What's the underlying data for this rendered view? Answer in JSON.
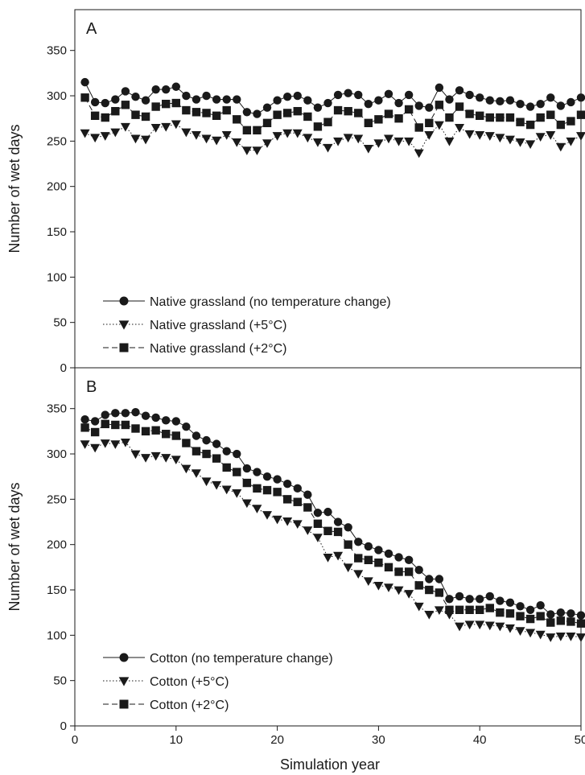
{
  "figure": {
    "xlabel": "Simulation year",
    "x_ticks": [
      0,
      10,
      20,
      30,
      40,
      50
    ],
    "line_color": "#1a1a1a"
  },
  "chart_data": [
    {
      "type": "line",
      "panel_label": "A",
      "ylabel": "Number of wet days",
      "xlim": [
        0,
        50
      ],
      "ylim": [
        0,
        395
      ],
      "y_ticks": [
        0,
        50,
        100,
        150,
        200,
        250,
        300,
        350
      ],
      "grid": false,
      "legend_position": "bottom-left",
      "x": [
        1,
        2,
        3,
        4,
        5,
        6,
        7,
        8,
        9,
        10,
        11,
        12,
        13,
        14,
        15,
        16,
        17,
        18,
        19,
        20,
        21,
        22,
        23,
        24,
        25,
        26,
        27,
        28,
        29,
        30,
        31,
        32,
        33,
        34,
        35,
        36,
        37,
        38,
        39,
        40,
        41,
        42,
        43,
        44,
        45,
        46,
        47,
        48,
        49,
        50
      ],
      "series": [
        {
          "name": "Native grassland (no temperature change)",
          "marker": "circle",
          "line_style": "solid",
          "values": [
            315,
            293,
            292,
            296,
            305,
            299,
            295,
            307,
            307,
            310,
            300,
            296,
            300,
            296,
            296,
            296,
            282,
            280,
            287,
            295,
            299,
            300,
            295,
            287,
            292,
            301,
            303,
            301,
            291,
            295,
            302,
            292,
            301,
            289,
            287,
            309,
            296,
            306,
            301,
            298,
            295,
            294,
            295,
            291,
            288,
            291,
            298,
            289,
            293,
            298
          ]
        },
        {
          "name": "Native grassland (+5°C)",
          "marker": "triangle-down",
          "line_style": "dotted",
          "values": [
            259,
            254,
            256,
            260,
            266,
            253,
            252,
            265,
            266,
            269,
            260,
            257,
            253,
            251,
            257,
            249,
            240,
            240,
            248,
            256,
            259,
            259,
            254,
            249,
            243,
            250,
            254,
            253,
            242,
            248,
            253,
            250,
            250,
            237,
            257,
            268,
            250,
            265,
            258,
            257,
            256,
            254,
            252,
            249,
            247,
            255,
            257,
            244,
            250,
            256
          ]
        },
        {
          "name": "Native grassland (+2°C)",
          "marker": "square",
          "line_style": "dashed",
          "values": [
            298,
            278,
            276,
            283,
            290,
            279,
            277,
            288,
            291,
            292,
            284,
            282,
            281,
            278,
            284,
            274,
            262,
            262,
            270,
            279,
            281,
            283,
            277,
            266,
            271,
            284,
            283,
            281,
            270,
            274,
            280,
            275,
            285,
            265,
            270,
            290,
            276,
            288,
            280,
            278,
            276,
            276,
            276,
            271,
            268,
            276,
            279,
            268,
            272,
            279
          ]
        }
      ]
    },
    {
      "type": "line",
      "panel_label": "B",
      "ylabel": "Number of wet days",
      "xlim": [
        0,
        50
      ],
      "ylim": [
        0,
        395
      ],
      "y_ticks": [
        0,
        50,
        100,
        150,
        200,
        250,
        300,
        350
      ],
      "grid": false,
      "legend_position": "bottom-left",
      "x": [
        1,
        2,
        3,
        4,
        5,
        6,
        7,
        8,
        9,
        10,
        11,
        12,
        13,
        14,
        15,
        16,
        17,
        18,
        19,
        20,
        21,
        22,
        23,
        24,
        25,
        26,
        27,
        28,
        29,
        30,
        31,
        32,
        33,
        34,
        35,
        36,
        37,
        38,
        39,
        40,
        41,
        42,
        43,
        44,
        45,
        46,
        47,
        48,
        49,
        50
      ],
      "series": [
        {
          "name": "Cotton (no temperature change)",
          "marker": "circle",
          "line_style": "solid",
          "values": [
            338,
            336,
            343,
            345,
            345,
            346,
            342,
            340,
            337,
            336,
            330,
            320,
            315,
            311,
            303,
            300,
            284,
            280,
            275,
            272,
            267,
            262,
            255,
            235,
            236,
            225,
            219,
            203,
            198,
            194,
            190,
            186,
            183,
            172,
            162,
            162,
            140,
            143,
            140,
            140,
            143,
            138,
            136,
            132,
            128,
            133,
            123,
            125,
            124,
            122
          ]
        },
        {
          "name": "Cotton (+5°C)",
          "marker": "triangle-down",
          "line_style": "dotted",
          "values": [
            311,
            307,
            312,
            311,
            313,
            300,
            296,
            298,
            296,
            294,
            284,
            279,
            270,
            266,
            261,
            257,
            246,
            240,
            233,
            228,
            226,
            223,
            216,
            208,
            186,
            188,
            175,
            168,
            160,
            155,
            153,
            150,
            146,
            132,
            123,
            128,
            123,
            110,
            112,
            112,
            111,
            110,
            108,
            105,
            103,
            101,
            98,
            99,
            99,
            98
          ]
        },
        {
          "name": "Cotton (+2°C)",
          "marker": "square",
          "line_style": "dashed",
          "values": [
            329,
            324,
            333,
            332,
            332,
            328,
            325,
            326,
            322,
            320,
            312,
            303,
            300,
            295,
            285,
            280,
            268,
            262,
            260,
            258,
            250,
            247,
            241,
            223,
            215,
            214,
            200,
            185,
            183,
            180,
            175,
            170,
            170,
            155,
            150,
            147,
            128,
            128,
            128,
            128,
            130,
            125,
            124,
            121,
            118,
            121,
            114,
            116,
            115,
            113
          ]
        }
      ]
    }
  ]
}
